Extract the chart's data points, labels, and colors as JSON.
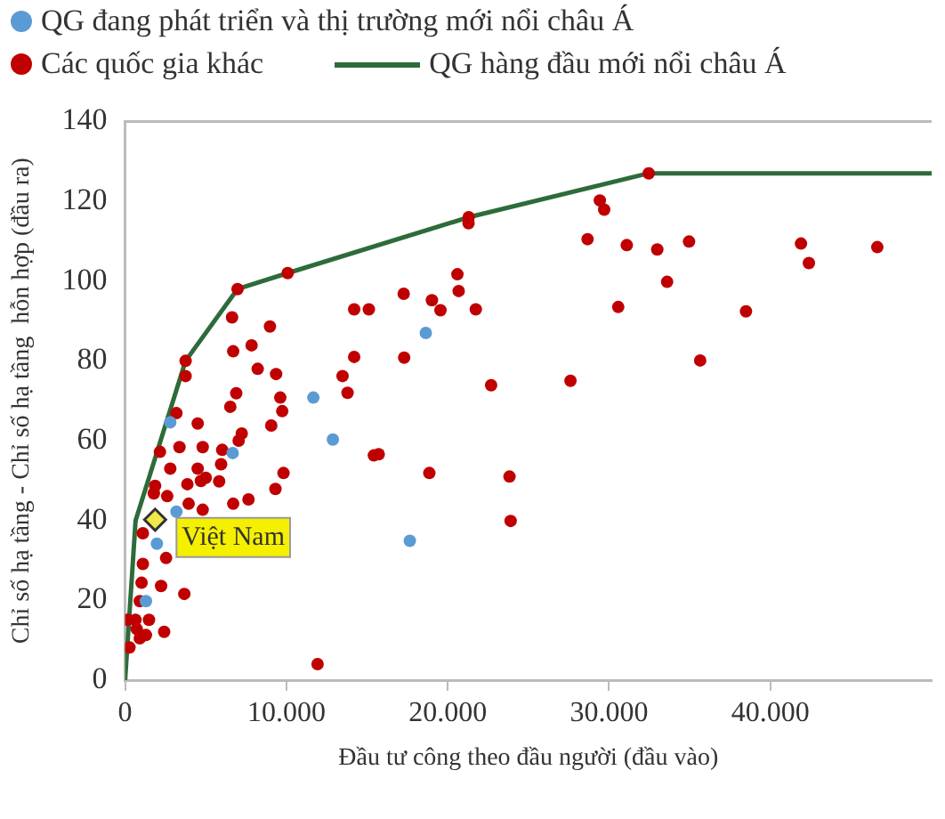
{
  "chart_data": {
    "type": "scatter",
    "xlabel": "Đầu tư công theo đầu người (đầu vào)",
    "ylabel": "Chỉ số hạ tầng - Chỉ số hạ tầng  hỗn hợp (đầu ra)",
    "xlim": [
      0,
      50000
    ],
    "xticks": [
      0,
      {
        "value": 10000,
        "label": "10.000"
      },
      {
        "value": 20000,
        "label": "20.000"
      },
      {
        "value": 30000,
        "label": "30.000"
      },
      {
        "value": 40000,
        "label": "40.000"
      }
    ],
    "ylim": [
      0,
      140
    ],
    "yticks": [
      0,
      20,
      40,
      60,
      80,
      100,
      120,
      140
    ],
    "grid": false,
    "legend": "top",
    "marker": "circle",
    "series": [
      {
        "name": "QG đang phát triển và thị trường mới nổi châu Á",
        "color": "#5b9bd5",
        "x": [
          2800,
          6670,
          11670,
          12880,
          18640,
          17650,
          1970,
          3180,
          1290
        ],
        "values": [
          64.6,
          56.9,
          70.8,
          60.3,
          87,
          34.9,
          34.2,
          42.2,
          19.8
        ]
      },
      {
        "name": "Các quốc gia khác",
        "color": "#c00000",
        "x": [
          21290,
          20600,
          20680,
          21740,
          22690,
          23830,
          23900,
          19020,
          19550,
          17270,
          17300,
          18860,
          15110,
          14200,
          14200,
          13480,
          13790,
          15420,
          15720,
          11930,
          10080,
          8980,
          9360,
          9620,
          9740,
          9060,
          9820,
          9320,
          7840,
          8220,
          6630,
          6700,
          6890,
          6520,
          7230,
          7040,
          6020,
          5950,
          6700,
          7650,
          5830,
          5000,
          4500,
          4700,
          3860,
          4810,
          3940,
          4500,
          4810,
          3370,
          3180,
          3750,
          3750,
          6970,
          2800,
          2160,
          1860,
          1780,
          2610,
          2540,
          2230,
          3670,
          2420,
          1100,
          1100,
          1020,
          910,
          1480,
          1290,
          720,
          150,
          270,
          910,
          640,
          21300,
          32460,
          29430,
          29700,
          28670,
          31100,
          32990,
          34960,
          33600,
          30570,
          35650,
          38490,
          41900,
          42390,
          46630,
          27610
        ],
        "values": [
          114.5,
          101.7,
          97.5,
          92.9,
          73.9,
          51,
          39.9,
          95.2,
          92.7,
          96.8,
          80.8,
          51.9,
          92.9,
          92.9,
          81,
          76.2,
          72,
          56.3,
          56.6,
          4,
          102,
          88.6,
          76.7,
          70.8,
          67.4,
          63.8,
          51.9,
          47.9,
          83.9,
          78,
          90.9,
          82.4,
          71.9,
          68.5,
          61.8,
          60,
          57.7,
          54.1,
          44.2,
          45.3,
          49.8,
          50.7,
          53,
          49.9,
          49.1,
          42.7,
          44.2,
          64.3,
          58.4,
          58.4,
          66.9,
          76.2,
          80,
          98,
          53,
          57.2,
          48.7,
          46.8,
          46.1,
          30.6,
          23.6,
          21.6,
          12.1,
          36.8,
          29.1,
          24.4,
          19.8,
          15.1,
          11.3,
          12.8,
          15.1,
          8.2,
          10.5,
          15.1,
          116,
          127,
          120.2,
          117.9,
          110.5,
          109,
          107.9,
          109.9,
          99.8,
          93.5,
          80.1,
          92.4,
          109.4,
          104.5,
          108.5,
          75
        ]
      },
      {
        "name": "QG hàng đầu mới nổi châu Á",
        "type": "line",
        "color": "#2e6b3a",
        "marker": "none",
        "x": [
          0,
          650,
          3750,
          6970,
          10080,
          21300,
          32460,
          50000
        ],
        "values": [
          0,
          40,
          80,
          98,
          102,
          116,
          127,
          127
        ]
      },
      {
        "type": "scatter",
        "color": "#f2e84a",
        "marker": "diamond",
        "x": [
          1860
        ],
        "values": [
          40.2
        ]
      }
    ],
    "annotations": [
      {
        "text": "Việt Nam",
        "x": 1860,
        "y": 40.2
      }
    ]
  }
}
